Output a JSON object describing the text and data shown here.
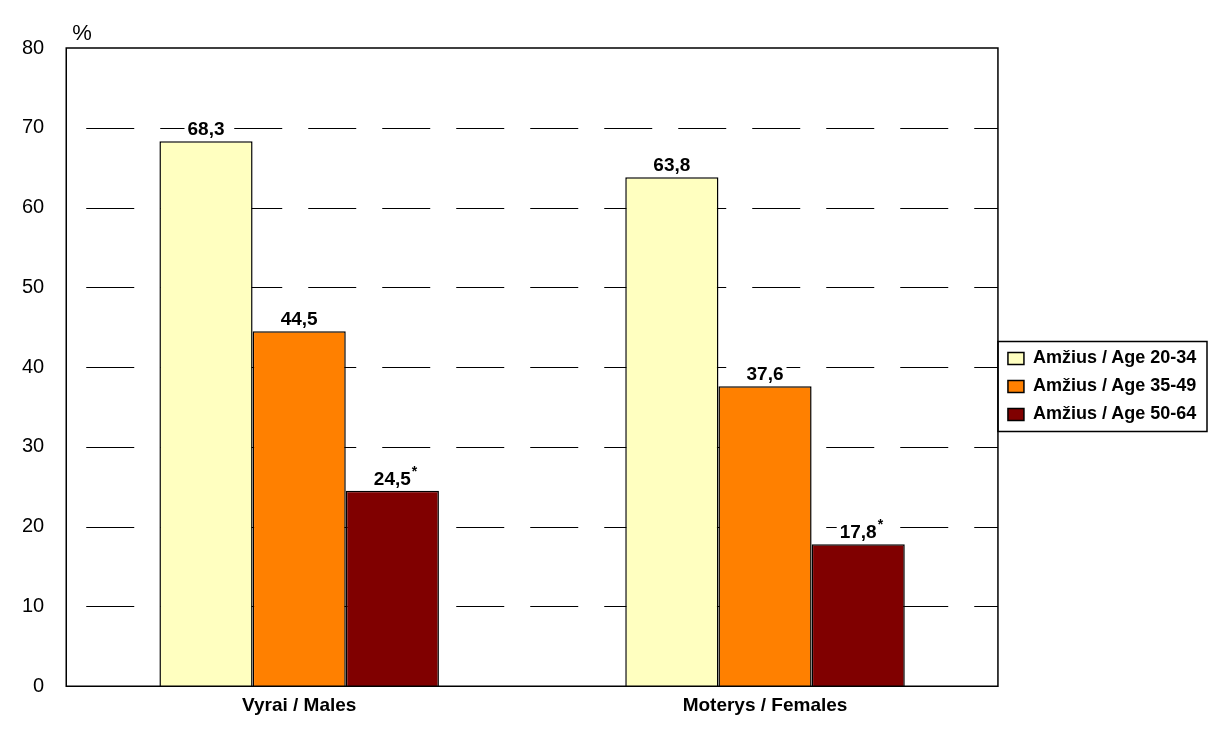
{
  "chart_data": {
    "type": "bar",
    "ylabel": "%",
    "categories": [
      "Vyrai / Males",
      "Moterys / Females"
    ],
    "series": [
      {
        "name": "Amžius / Age 20-34",
        "color": "#ffffc0",
        "values": [
          68.3,
          63.8
        ],
        "value_labels": [
          "68,3",
          "63,8"
        ]
      },
      {
        "name": "Amžius / Age 35-49",
        "color": "#ff8000",
        "values": [
          44.5,
          37.6
        ],
        "value_labels": [
          "44,5",
          "37,6"
        ]
      },
      {
        "name": "Amžius / Age 50-64",
        "color": "#800000",
        "values": [
          24.5,
          17.8
        ],
        "value_labels": [
          "24,5$^{*}$",
          "17,8$^{*}$"
        ]
      }
    ],
    "ylim": [
      0,
      80
    ],
    "yticks": [
      0,
      10,
      20,
      30,
      40,
      50,
      60,
      70,
      80
    ],
    "grid": "y",
    "legend": "right"
  }
}
